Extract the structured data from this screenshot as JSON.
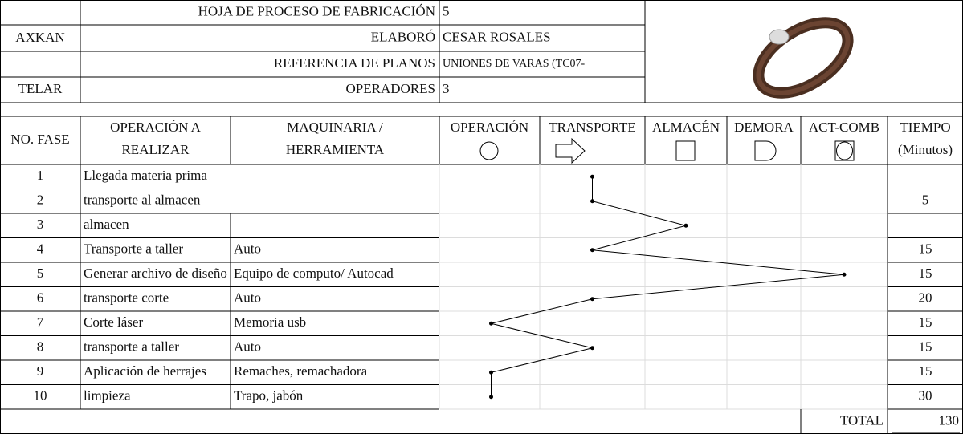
{
  "header": {
    "company": "AXKAN",
    "loom": "TELAR",
    "fields": [
      {
        "label": "HOJA DE PROCESO DE FABRICACIÓN",
        "value": "5"
      },
      {
        "label": "ELABORÓ",
        "value": "CESAR ROSALES"
      },
      {
        "label": "REFERENCIA DE PLANOS",
        "value": "UNIONES DE VARAS (TC07-"
      },
      {
        "label": "OPERADORES",
        "value": "3"
      }
    ]
  },
  "table": {
    "columns": {
      "fase": "NO. FASE",
      "operacion": [
        "OPERACIÓN A",
        "REALIZAR"
      ],
      "maquinaria": [
        "MAQUINARIA /",
        "HERRAMIENTA"
      ],
      "activities": [
        "OPERACIÓN",
        "TRANSPORTE",
        "ALMACÉN",
        "DEMORA",
        "ACT-COMB"
      ],
      "tiempo": [
        "TIEMPO",
        "(Minutos)"
      ]
    },
    "rows": [
      {
        "fase": 1,
        "operacion": "Llegada materia prima",
        "activity": 1
      },
      {
        "fase": 2,
        "operacion": "transporte al almacen",
        "activity": 1,
        "tiempo": 5
      },
      {
        "fase": 3,
        "operacion": "almacen",
        "activity": 2
      },
      {
        "fase": 4,
        "operacion": "Transporte a taller",
        "maquinaria": "Auto",
        "activity": 1,
        "tiempo": 15
      },
      {
        "fase": 5,
        "operacion": "Generar archivo de diseño",
        "maquinaria": "Equipo de computo/ Autocad",
        "activity": 4,
        "tiempo": 15
      },
      {
        "fase": 6,
        "operacion": "transporte corte",
        "maquinaria": "Auto",
        "activity": 1,
        "tiempo": 20
      },
      {
        "fase": 7,
        "operacion": "Corte láser",
        "maquinaria": "Memoria usb",
        "activity": 0,
        "tiempo": 15
      },
      {
        "fase": 8,
        "operacion": "transporte a taller",
        "maquinaria": "Auto",
        "activity": 1,
        "tiempo": 15
      },
      {
        "fase": 9,
        "operacion": "Aplicación de herrajes",
        "maquinaria": "Remaches, remachadora",
        "activity": 0,
        "tiempo": 15
      },
      {
        "fase": 10,
        "operacion": "limpieza",
        "maquinaria": "Trapo, jabón",
        "activity": 0,
        "tiempo": 30
      }
    ],
    "total_label": "TOTAL",
    "total": 130
  }
}
